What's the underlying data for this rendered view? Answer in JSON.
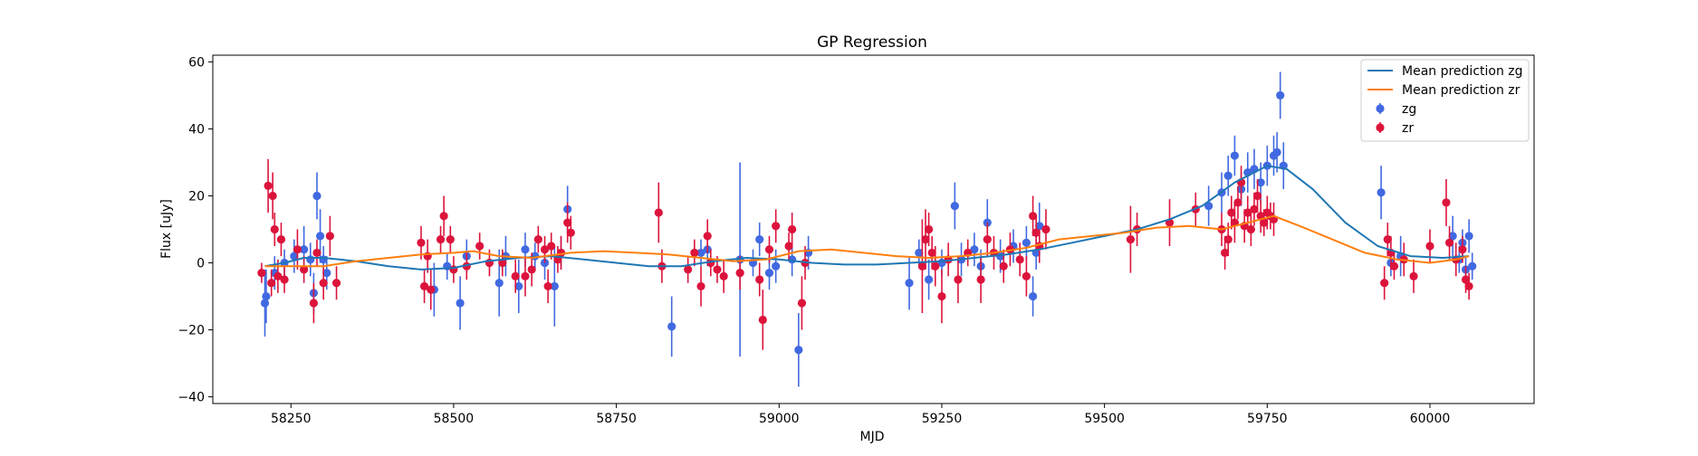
{
  "chart_data": {
    "type": "scatter",
    "title": "GP Regression",
    "xlabel": "MJD",
    "ylabel": "Flux [uJy]",
    "xlim": [
      58130,
      60160
    ],
    "ylim": [
      -42,
      62
    ],
    "xticks": [
      58250,
      58500,
      58750,
      59000,
      59250,
      59500,
      59750,
      60000
    ],
    "yticks": [
      -40,
      -20,
      0,
      20,
      40,
      60
    ],
    "legend_position": "top-right",
    "colors": {
      "zg_line": "#1f77b4",
      "zr_line": "#ff7f0e",
      "zg_points": "#4169e1",
      "zr_points": "#dc143c"
    },
    "legend": [
      {
        "label": "Mean prediction zg",
        "kind": "line",
        "color": "#1f77b4"
      },
      {
        "label": "Mean prediction zr",
        "kind": "line",
        "color": "#ff7f0e"
      },
      {
        "label": "zg",
        "kind": "errorbar",
        "color": "#4169e1"
      },
      {
        "label": "zr",
        "kind": "errorbar",
        "color": "#dc143c"
      }
    ],
    "series": [
      {
        "name": "Mean prediction zg",
        "type": "line",
        "points": [
          [
            58210,
            -1
          ],
          [
            58240,
            0
          ],
          [
            58270,
            1.5
          ],
          [
            58300,
            1.5
          ],
          [
            58350,
            0.5
          ],
          [
            58400,
            -1
          ],
          [
            58450,
            -2
          ],
          [
            58500,
            -1.5
          ],
          [
            58550,
            0.5
          ],
          [
            58600,
            1.5
          ],
          [
            58650,
            2
          ],
          [
            58700,
            1
          ],
          [
            58750,
            0
          ],
          [
            58800,
            -1
          ],
          [
            58850,
            -1
          ],
          [
            58900,
            0.5
          ],
          [
            58950,
            1.5
          ],
          [
            59000,
            1
          ],
          [
            59050,
            0
          ],
          [
            59100,
            -0.5
          ],
          [
            59150,
            -0.5
          ],
          [
            59200,
            0
          ],
          [
            59250,
            0.5
          ],
          [
            59300,
            1.5
          ],
          [
            59350,
            2.5
          ],
          [
            59400,
            4
          ],
          [
            59450,
            6
          ],
          [
            59500,
            8
          ],
          [
            59550,
            10
          ],
          [
            59600,
            13
          ],
          [
            59650,
            17
          ],
          [
            59700,
            24
          ],
          [
            59750,
            29
          ],
          [
            59780,
            28
          ],
          [
            59820,
            22
          ],
          [
            59870,
            12
          ],
          [
            59920,
            5
          ],
          [
            59970,
            2
          ],
          [
            60020,
            1.5
          ],
          [
            60060,
            2
          ]
        ]
      },
      {
        "name": "Mean prediction zr",
        "type": "line",
        "points": [
          [
            58210,
            -1
          ],
          [
            58250,
            -1
          ],
          [
            58300,
            -1
          ],
          [
            58350,
            0.5
          ],
          [
            58400,
            1.5
          ],
          [
            58450,
            2.5
          ],
          [
            58500,
            3
          ],
          [
            58530,
            3.5
          ],
          [
            58570,
            2
          ],
          [
            58620,
            1.5
          ],
          [
            58680,
            3
          ],
          [
            58730,
            3.5
          ],
          [
            58780,
            3
          ],
          [
            58830,
            2.5
          ],
          [
            58880,
            1.5
          ],
          [
            58930,
            0.5
          ],
          [
            58980,
            1
          ],
          [
            59030,
            3.5
          ],
          [
            59080,
            4
          ],
          [
            59130,
            3
          ],
          [
            59180,
            2
          ],
          [
            59230,
            1.5
          ],
          [
            59280,
            2
          ],
          [
            59330,
            3
          ],
          [
            59380,
            4.5
          ],
          [
            59430,
            7
          ],
          [
            59480,
            8
          ],
          [
            59530,
            9
          ],
          [
            59580,
            10.5
          ],
          [
            59630,
            11
          ],
          [
            59680,
            10
          ],
          [
            59720,
            12
          ],
          [
            59760,
            14
          ],
          [
            59800,
            11
          ],
          [
            59850,
            7
          ],
          [
            59900,
            3
          ],
          [
            59950,
            1
          ],
          [
            60000,
            0
          ],
          [
            60040,
            1
          ],
          [
            60060,
            2
          ]
        ]
      },
      {
        "name": "zg",
        "type": "errorbar",
        "points": [
          [
            58210,
            -12,
            10
          ],
          [
            58212,
            -10,
            8
          ],
          [
            58225,
            -3,
            5
          ],
          [
            58240,
            0,
            4
          ],
          [
            58255,
            2,
            5
          ],
          [
            58270,
            4,
            7
          ],
          [
            58280,
            1,
            5
          ],
          [
            58285,
            -9,
            6
          ],
          [
            58290,
            20,
            7
          ],
          [
            58295,
            8,
            8
          ],
          [
            58300,
            1,
            4
          ],
          [
            58305,
            -3,
            5
          ],
          [
            58470,
            -8,
            8
          ],
          [
            58490,
            -1,
            4
          ],
          [
            58510,
            -12,
            8
          ],
          [
            58520,
            2,
            5
          ],
          [
            58570,
            -6,
            10
          ],
          [
            58580,
            2,
            6
          ],
          [
            58600,
            -7,
            8
          ],
          [
            58610,
            4,
            5
          ],
          [
            58625,
            2,
            4
          ],
          [
            58640,
            0,
            5
          ],
          [
            58655,
            -7,
            12
          ],
          [
            58665,
            3,
            5
          ],
          [
            58675,
            16,
            7
          ],
          [
            58835,
            -19,
            9
          ],
          [
            58880,
            3,
            4
          ],
          [
            58890,
            4,
            5
          ],
          [
            58940,
            1,
            29
          ],
          [
            58960,
            0,
            4
          ],
          [
            58970,
            7,
            5
          ],
          [
            58985,
            -3,
            5
          ],
          [
            58995,
            -1,
            5
          ],
          [
            59020,
            1,
            5
          ],
          [
            59030,
            -26,
            11
          ],
          [
            59045,
            3,
            5
          ],
          [
            59200,
            -6,
            8
          ],
          [
            59215,
            3,
            4
          ],
          [
            59230,
            -5,
            6
          ],
          [
            59250,
            0,
            4
          ],
          [
            59270,
            17,
            7
          ],
          [
            59280,
            1,
            5
          ],
          [
            59300,
            4,
            5
          ],
          [
            59310,
            -1,
            5
          ],
          [
            59320,
            12,
            7
          ],
          [
            59340,
            2,
            5
          ],
          [
            59360,
            5,
            5
          ],
          [
            59380,
            6,
            5
          ],
          [
            59390,
            -10,
            6
          ],
          [
            59395,
            3,
            5
          ],
          [
            59400,
            11,
            7
          ],
          [
            59660,
            17,
            6
          ],
          [
            59680,
            21,
            6
          ],
          [
            59690,
            26,
            6
          ],
          [
            59700,
            32,
            6
          ],
          [
            59710,
            22,
            5
          ],
          [
            59720,
            27,
            6
          ],
          [
            59730,
            28,
            6
          ],
          [
            59740,
            24,
            6
          ],
          [
            59750,
            29,
            6
          ],
          [
            59760,
            32,
            6
          ],
          [
            59765,
            33,
            6
          ],
          [
            59770,
            50,
            7
          ],
          [
            59775,
            29,
            7
          ],
          [
            59925,
            21,
            8
          ],
          [
            59940,
            0,
            4
          ],
          [
            59955,
            2,
            6
          ],
          [
            60035,
            8,
            6
          ],
          [
            60045,
            1,
            4
          ],
          [
            60050,
            6,
            4
          ],
          [
            60055,
            -2,
            4
          ],
          [
            60060,
            8,
            5
          ],
          [
            60065,
            -1,
            4
          ]
        ]
      },
      {
        "name": "zr",
        "type": "errorbar",
        "points": [
          [
            58205,
            -3,
            3
          ],
          [
            58215,
            23,
            8
          ],
          [
            58220,
            -6,
            4
          ],
          [
            58222,
            20,
            7
          ],
          [
            58225,
            10,
            5
          ],
          [
            58230,
            -4,
            5
          ],
          [
            58235,
            7,
            5
          ],
          [
            58240,
            -5,
            4
          ],
          [
            58260,
            4,
            6
          ],
          [
            58270,
            -2,
            4
          ],
          [
            58285,
            -12,
            6
          ],
          [
            58290,
            3,
            4
          ],
          [
            58300,
            -6,
            5
          ],
          [
            58310,
            8,
            6
          ],
          [
            58320,
            -6,
            5
          ],
          [
            58450,
            6,
            5
          ],
          [
            58455,
            -7,
            5
          ],
          [
            58460,
            2,
            5
          ],
          [
            58465,
            -8,
            6
          ],
          [
            58480,
            7,
            4
          ],
          [
            58485,
            14,
            6
          ],
          [
            58495,
            7,
            4
          ],
          [
            58500,
            -2,
            4
          ],
          [
            58520,
            -1,
            4
          ],
          [
            58540,
            5,
            4
          ],
          [
            58555,
            0,
            4
          ],
          [
            58575,
            0,
            4
          ],
          [
            58595,
            -4,
            5
          ],
          [
            58610,
            -4,
            6
          ],
          [
            58620,
            -2,
            5
          ],
          [
            58630,
            7,
            4
          ],
          [
            58640,
            4,
            4
          ],
          [
            58645,
            -7,
            5
          ],
          [
            58650,
            5,
            4
          ],
          [
            58660,
            1,
            4
          ],
          [
            58665,
            3,
            5
          ],
          [
            58675,
            12,
            6
          ],
          [
            58680,
            9,
            5
          ],
          [
            58815,
            15,
            9
          ],
          [
            58820,
            -1,
            5
          ],
          [
            58860,
            -2,
            4
          ],
          [
            58870,
            3,
            4
          ],
          [
            58880,
            -7,
            6
          ],
          [
            58890,
            8,
            5
          ],
          [
            58895,
            0,
            4
          ],
          [
            58905,
            -2,
            4
          ],
          [
            58915,
            -4,
            5
          ],
          [
            58940,
            -3,
            5
          ],
          [
            58970,
            -5,
            5
          ],
          [
            58975,
            -17,
            9
          ],
          [
            58985,
            4,
            4
          ],
          [
            58995,
            11,
            5
          ],
          [
            59015,
            5,
            4
          ],
          [
            59020,
            10,
            5
          ],
          [
            59035,
            -12,
            8
          ],
          [
            59040,
            0,
            5
          ],
          [
            59220,
            -1,
            14
          ],
          [
            59225,
            7,
            9
          ],
          [
            59230,
            10,
            5
          ],
          [
            59235,
            3,
            5
          ],
          [
            59240,
            -1,
            6
          ],
          [
            59250,
            -10,
            8
          ],
          [
            59260,
            1,
            5
          ],
          [
            59275,
            -5,
            7
          ],
          [
            59290,
            3,
            4
          ],
          [
            59310,
            -5,
            7
          ],
          [
            59320,
            7,
            5
          ],
          [
            59330,
            3,
            5
          ],
          [
            59345,
            -1,
            5
          ],
          [
            59355,
            4,
            5
          ],
          [
            59370,
            1,
            5
          ],
          [
            59380,
            -4,
            6
          ],
          [
            59390,
            14,
            6
          ],
          [
            59395,
            9,
            5
          ],
          [
            59400,
            5,
            5
          ],
          [
            59410,
            10,
            6
          ],
          [
            59540,
            7,
            10
          ],
          [
            59550,
            10,
            5
          ],
          [
            59600,
            12,
            7
          ],
          [
            59640,
            16,
            5
          ],
          [
            59680,
            10,
            5
          ],
          [
            59685,
            3,
            5
          ],
          [
            59690,
            7,
            5
          ],
          [
            59695,
            15,
            5
          ],
          [
            59700,
            12,
            6
          ],
          [
            59705,
            18,
            5
          ],
          [
            59710,
            24,
            5
          ],
          [
            59715,
            11,
            5
          ],
          [
            59720,
            15,
            5
          ],
          [
            59725,
            10,
            5
          ],
          [
            59730,
            16,
            5
          ],
          [
            59735,
            20,
            5
          ],
          [
            59740,
            14,
            5
          ],
          [
            59745,
            12,
            4
          ],
          [
            59750,
            15,
            5
          ],
          [
            59755,
            14,
            4
          ],
          [
            59760,
            13,
            5
          ],
          [
            59930,
            -6,
            5
          ],
          [
            59935,
            7,
            5
          ],
          [
            59940,
            3,
            5
          ],
          [
            59945,
            -1,
            4
          ],
          [
            59960,
            1,
            5
          ],
          [
            59975,
            -4,
            5
          ],
          [
            60000,
            5,
            5
          ],
          [
            60025,
            18,
            7
          ],
          [
            60030,
            6,
            5
          ],
          [
            60040,
            1,
            5
          ],
          [
            60050,
            4,
            4
          ],
          [
            60055,
            -5,
            4
          ],
          [
            60060,
            -7,
            4
          ]
        ]
      }
    ]
  }
}
